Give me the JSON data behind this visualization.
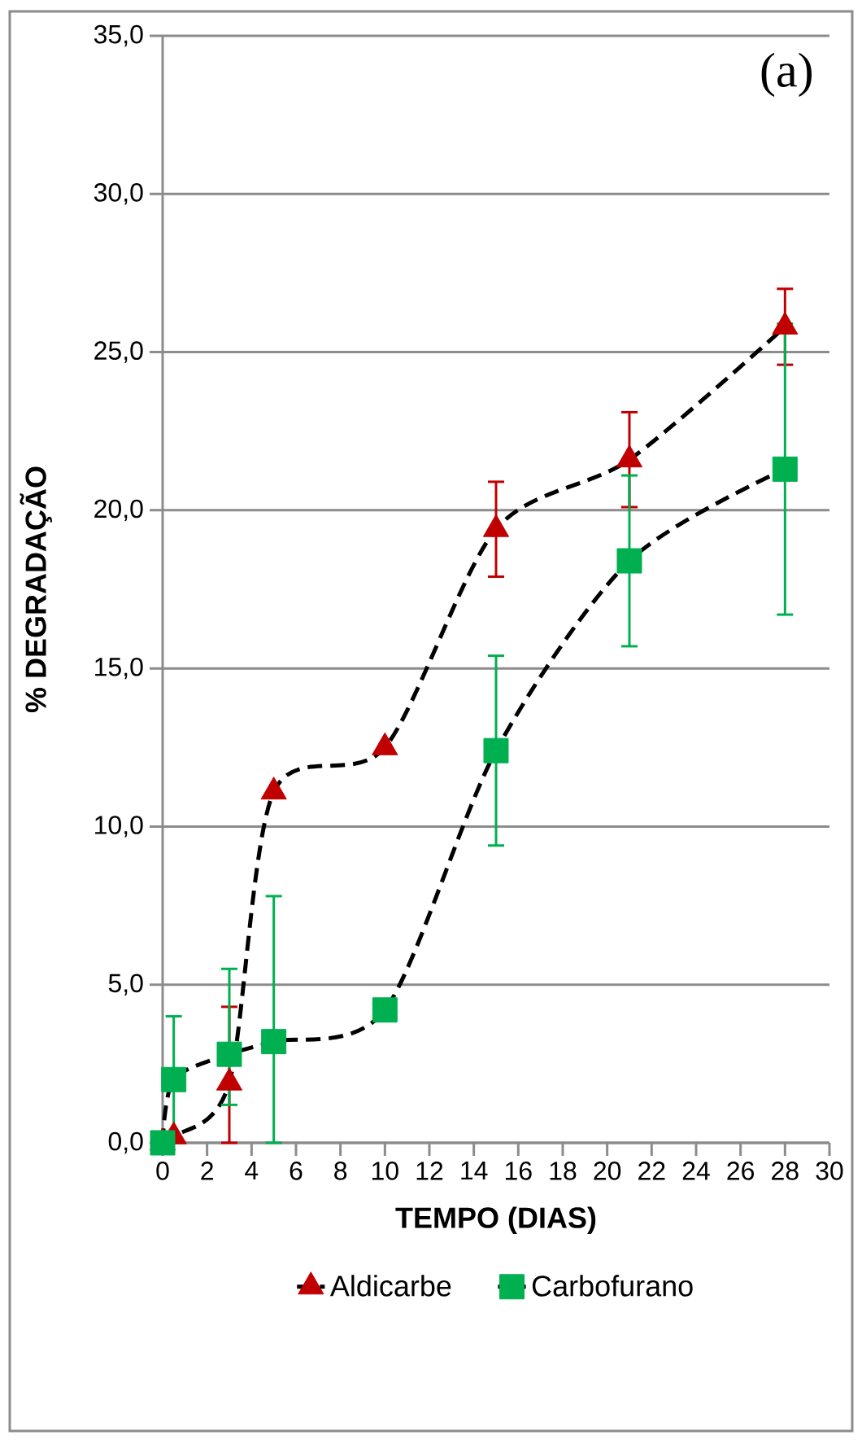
{
  "chart_data": {
    "type": "line",
    "xlabel": "TEMPO (DIAS)",
    "ylabel": "% DEGRADAÇÃO",
    "annotations": [
      "(a)"
    ],
    "x": [
      0,
      0.5,
      3,
      5,
      10,
      15,
      21,
      28
    ],
    "series": [
      {
        "name": "Aldicarbe",
        "color": "#c00000",
        "marker": "triangle",
        "values": [
          0,
          0.2,
          1.9,
          11.1,
          12.5,
          19.4,
          21.6,
          25.8
        ],
        "errors": [
          null,
          null,
          [
            0,
            4.3
          ],
          null,
          null,
          1.5,
          1.5,
          1.2
        ]
      },
      {
        "name": "Carbofurano",
        "color": "#00b050",
        "marker": "square",
        "values": [
          0,
          2.0,
          2.8,
          3.2,
          4.2,
          12.4,
          18.4,
          21.3
        ],
        "errors": [
          null,
          2.0,
          [
            1.2,
            5.5
          ],
          [
            0,
            7.8
          ],
          null,
          3.0,
          2.7,
          4.6
        ]
      }
    ],
    "xlim": [
      0,
      30
    ],
    "ylim": [
      0,
      35
    ],
    "xticks": [
      0,
      2,
      4,
      6,
      8,
      10,
      12,
      14,
      16,
      18,
      20,
      22,
      24,
      26,
      28,
      30
    ],
    "yticks": [
      {
        "value": 0,
        "label": "0,0"
      },
      {
        "value": 5,
        "label": "5,0"
      },
      {
        "value": 10,
        "label": "10,0"
      },
      {
        "value": 15,
        "label": "15,0"
      },
      {
        "value": 20,
        "label": "20,0"
      },
      {
        "value": 25,
        "label": "25,0"
      },
      {
        "value": 30,
        "label": "30,0"
      },
      {
        "value": 35,
        "label": "35,0"
      }
    ],
    "grid": "y",
    "legend": "bottom",
    "line_style": "dashed"
  }
}
